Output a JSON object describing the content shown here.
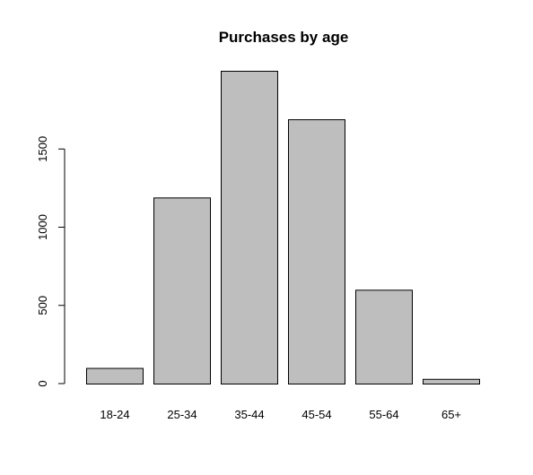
{
  "chart_data": {
    "type": "bar",
    "title": "Purchases by age",
    "xlabel": "",
    "ylabel": "",
    "categories": [
      "18-24",
      "25-34",
      "35-44",
      "45-54",
      "55-64",
      "65+"
    ],
    "values": [
      100,
      1190,
      2000,
      1690,
      600,
      30
    ],
    "ylim": [
      0,
      2000
    ],
    "yticks": [
      0,
      500,
      1000,
      1500
    ],
    "grid": false,
    "legend": "none",
    "bar_color": "#bebebe",
    "bar_stroke": "#000000"
  }
}
